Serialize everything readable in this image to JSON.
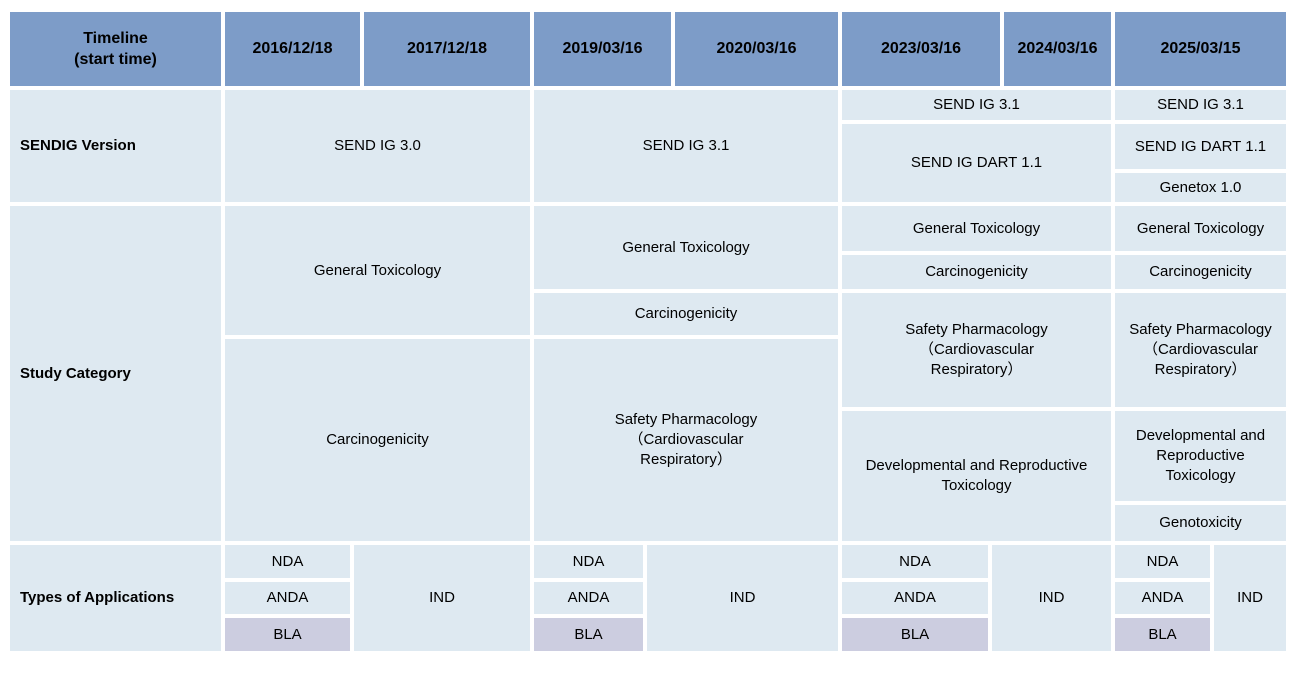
{
  "header": {
    "timeline": "Timeline\n(start time)",
    "dates": [
      "2016/12/18",
      "2017/12/18",
      "2019/03/16",
      "2020/03/16",
      "2023/03/16",
      "2024/03/16",
      "2025/03/15"
    ]
  },
  "sendig": {
    "label": "SENDIG Version",
    "cells": {
      "ig30": "SEND IG 3.0",
      "ig31": "SEND IG 3.1",
      "dart11": "SEND IG DART 1.1",
      "genetox10": "Genetox 1.0"
    }
  },
  "study": {
    "label": "Study Category",
    "cells": {
      "general_tox": "General Toxicology",
      "carcinogenicity": "Carcinogenicity",
      "safety_pharm": "Safety Pharmacology\n（Cardiovascular\nRespiratory）",
      "dev_repro_tox": "Developmental and Reproductive Toxicology",
      "genotoxicity": "Genotoxicity"
    }
  },
  "applications": {
    "label": "Types of Applications",
    "cells": {
      "nda": "NDA",
      "anda": "ANDA",
      "bla": "BLA",
      "ind": "IND"
    }
  },
  "colors": {
    "header_bg": "#7D9CC8",
    "cell_bg": "#DEE9F1",
    "bla_bg": "#CCCDE0",
    "text": "#000000"
  }
}
